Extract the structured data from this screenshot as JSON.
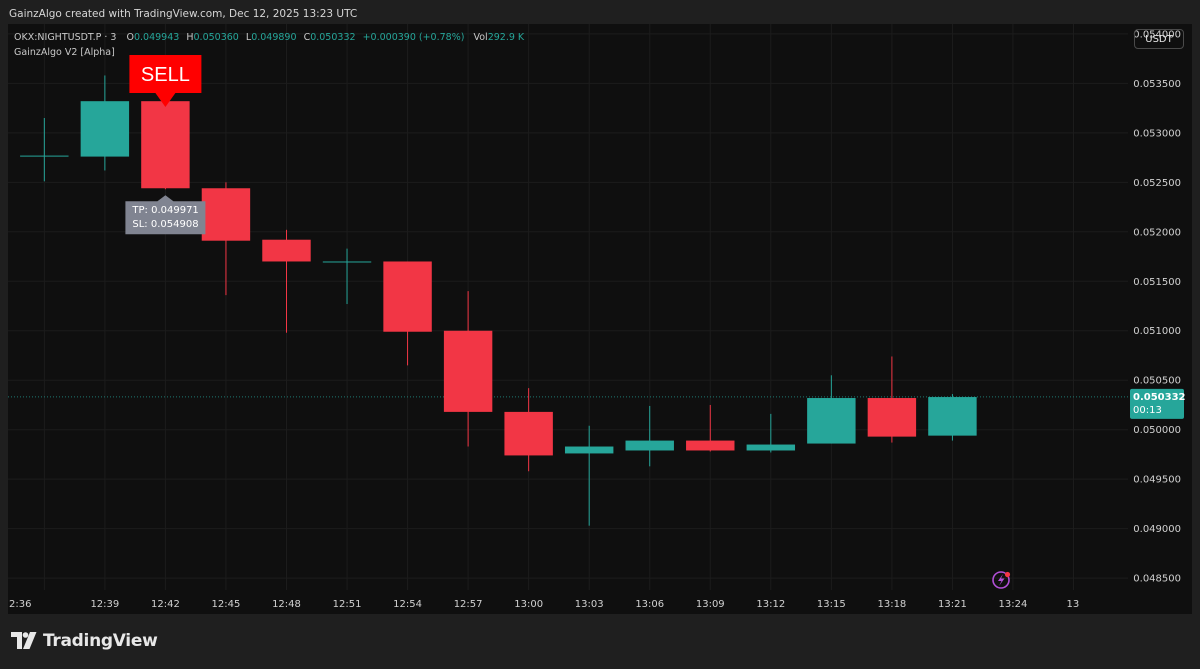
{
  "header": {
    "credit": "GainzAlgo created with TradingView.com, Dec 12, 2025 13:23 UTC"
  },
  "legend": {
    "symbol": "OKX:NIGHTUSDT.P · 3",
    "open_label": "O",
    "open": "0.049943",
    "high_label": "H",
    "high": "0.050360",
    "low_label": "L",
    "low": "0.049890",
    "close_label": "C",
    "close": "0.050332",
    "change": "+0.000390 (+0.78%)",
    "vol_label": "Vol",
    "vol": "292.9 K",
    "indicator": "GainzAlgo V2 [Alpha]"
  },
  "currency_button": "USDT",
  "footer": {
    "brand": "TradingView"
  },
  "colors": {
    "up": "#26a69a",
    "down": "#f23645",
    "signal": "#ff0000",
    "background": "#0f0f0f",
    "grid": "#1c1c1c",
    "last_price": "#26a69a"
  },
  "chart_data": {
    "type": "candlestick",
    "x_tick_labels": [
      "2:36",
      "12:39",
      "12:42",
      "12:45",
      "12:48",
      "12:51",
      "12:54",
      "12:57",
      "13:00",
      "13:03",
      "13:06",
      "13:09",
      "13:12",
      "13:15",
      "13:18",
      "13:21",
      "13:24",
      "13"
    ],
    "y_tick_labels": [
      "0.054000",
      "0.053500",
      "0.053000",
      "0.052500",
      "0.052000",
      "0.051500",
      "0.051000",
      "0.050500",
      "0.050000",
      "0.049500",
      "0.049000",
      "0.048500"
    ],
    "y_ticks": [
      0.054,
      0.0535,
      0.053,
      0.0525,
      0.052,
      0.0515,
      0.051,
      0.0505,
      0.05,
      0.0495,
      0.049,
      0.0485
    ],
    "ylim": [
      0.04838,
      0.0541
    ],
    "xlim": [
      -0.6,
      17.9
    ],
    "candles": [
      {
        "i": 0,
        "time": "12:36",
        "o": 0.05277,
        "h": 0.05315,
        "l": 0.05251,
        "c": 0.05277
      },
      {
        "i": 1,
        "time": "12:39",
        "o": 0.05276,
        "h": 0.05358,
        "l": 0.05262,
        "c": 0.05332
      },
      {
        "i": 2,
        "time": "12:42",
        "o": 0.05332,
        "h": 0.05348,
        "l": 0.05243,
        "c": 0.05244
      },
      {
        "i": 3,
        "time": "12:45",
        "o": 0.05244,
        "h": 0.0525,
        "l": 0.05136,
        "c": 0.05191
      },
      {
        "i": 4,
        "time": "12:48",
        "o": 0.05192,
        "h": 0.05202,
        "l": 0.05098,
        "c": 0.0517
      },
      {
        "i": 5,
        "time": "12:51",
        "o": 0.0517,
        "h": 0.05183,
        "l": 0.05127,
        "c": 0.0517
      },
      {
        "i": 6,
        "time": "12:54",
        "o": 0.0517,
        "h": 0.0517,
        "l": 0.05065,
        "c": 0.05099
      },
      {
        "i": 7,
        "time": "12:57",
        "o": 0.051,
        "h": 0.0514,
        "l": 0.04983,
        "c": 0.05018
      },
      {
        "i": 8,
        "time": "13:00",
        "o": 0.05018,
        "h": 0.05042,
        "l": 0.04958,
        "c": 0.04974
      },
      {
        "i": 9,
        "time": "13:03",
        "o": 0.04976,
        "h": 0.05004,
        "l": 0.04903,
        "c": 0.04983
      },
      {
        "i": 10,
        "time": "13:06",
        "o": 0.04979,
        "h": 0.05024,
        "l": 0.04963,
        "c": 0.04989
      },
      {
        "i": 11,
        "time": "13:09",
        "o": 0.04989,
        "h": 0.05025,
        "l": 0.04978,
        "c": 0.04979
      },
      {
        "i": 12,
        "time": "13:12",
        "o": 0.04979,
        "h": 0.05016,
        "l": 0.04977,
        "c": 0.04985
      },
      {
        "i": 13,
        "time": "13:15",
        "o": 0.04986,
        "h": 0.05055,
        "l": 0.04986,
        "c": 0.05032
      },
      {
        "i": 14,
        "time": "13:18",
        "o": 0.05032,
        "h": 0.05074,
        "l": 0.04987,
        "c": 0.04993
      },
      {
        "i": 15,
        "time": "13:21",
        "o": 0.04994,
        "h": 0.05036,
        "l": 0.04989,
        "c": 0.05033
      }
    ],
    "last_price": {
      "value": 0.050332,
      "label": "0.050332",
      "countdown": "00:13"
    },
    "signal": {
      "candle": 2,
      "label": "SELL",
      "tp": "TP: 0.049971",
      "sl": "SL: 0.054908"
    },
    "grid": true
  }
}
